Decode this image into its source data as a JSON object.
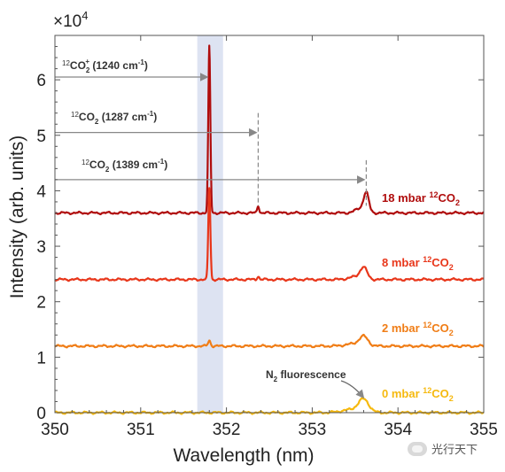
{
  "chart_data": {
    "type": "line",
    "xlabel": "Wavelength (nm)",
    "ylabel": "Intensity (arb. units)",
    "multiplier": "×10",
    "multiplier_exp": "4",
    "xlim": [
      350,
      355
    ],
    "ylim": [
      0,
      6.8
    ],
    "x_ticks": [
      "350",
      "351",
      "352",
      "353",
      "354",
      "355"
    ],
    "y_ticks": [
      "0",
      "1",
      "2",
      "3",
      "4",
      "5",
      "6"
    ],
    "highlight_band": {
      "x_from": 351.66,
      "x_to": 351.96,
      "color": "#dde3f2"
    },
    "annotations": [
      {
        "iso": "12",
        "species": "CO",
        "sub": "2",
        "charge": "+",
        "band": " (1240 cm",
        "exp": "-1",
        "close": ")",
        "y": 6.05,
        "x_end": 351.8,
        "color": "#888888"
      },
      {
        "iso": "12",
        "species": "CO",
        "sub": "2",
        "charge": "",
        "band": " (1287 cm",
        "exp": "-1",
        "close": ")",
        "y": 5.05,
        "x_end": 352.37,
        "color": "#888888"
      },
      {
        "iso": "12",
        "species": "CO",
        "sub": "2",
        "charge": "",
        "band": " (1389 cm",
        "exp": "-1",
        "close": ")",
        "y": 4.2,
        "x_end": 353.63,
        "color": "#888888"
      }
    ],
    "n2_label": {
      "species": "N",
      "sub": "2",
      "text": " fluorescence"
    },
    "series": [
      {
        "name": "18 mbar 12CO2",
        "pressure": "18 mbar ",
        "iso": "12",
        "species": "CO",
        "sub": "2",
        "color": "#b00d0d",
        "baseline": 3.6,
        "label_y": 3.75,
        "peaks": [
          {
            "x": 351.8,
            "h": 3.0,
            "w": 0.012
          },
          {
            "x": 352.37,
            "h": 0.13,
            "w": 0.012
          },
          {
            "x": 353.63,
            "h": 0.33,
            "w": 0.03
          }
        ]
      },
      {
        "name": "8 mbar 12CO2",
        "pressure": "8 mbar ",
        "iso": "12",
        "species": "CO",
        "sub": "2",
        "color": "#e8361a",
        "baseline": 2.4,
        "label_y": 2.55,
        "peaks": [
          {
            "x": 351.8,
            "h": 1.65,
            "w": 0.012
          },
          {
            "x": 352.37,
            "h": 0.06,
            "w": 0.012
          },
          {
            "x": 353.6,
            "h": 0.2,
            "w": 0.04
          }
        ]
      },
      {
        "name": "2 mbar 12CO2",
        "pressure": "2 mbar ",
        "iso": "12",
        "species": "CO",
        "sub": "2",
        "color": "#f07d16",
        "baseline": 1.2,
        "label_y": 1.35,
        "peaks": [
          {
            "x": 351.8,
            "h": 0.1,
            "w": 0.015
          },
          {
            "x": 353.6,
            "h": 0.16,
            "w": 0.05
          }
        ]
      },
      {
        "name": "0 mbar 12CO2",
        "pressure": "0 mbar ",
        "iso": "12",
        "species": "CO",
        "sub": "2",
        "color": "#f6b90e",
        "baseline": 0.0,
        "label_y": 0.15,
        "peaks": [
          {
            "x": 353.6,
            "h": 0.22,
            "w": 0.06
          }
        ]
      }
    ]
  },
  "watermark": {
    "text": "光行天下"
  }
}
